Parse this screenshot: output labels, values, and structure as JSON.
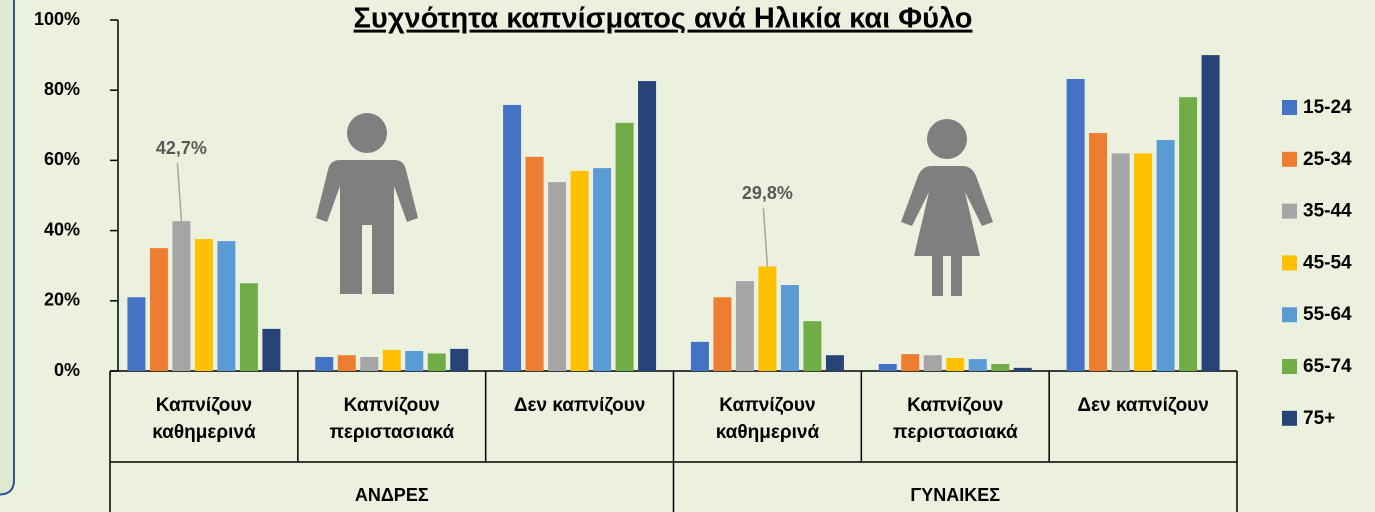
{
  "chart_data": {
    "type": "bar",
    "title": "Συχνότητα καπνίσματος ανά Ηλικία και Φύλο",
    "categories": [
      "Καπνίζουν καθημερινά",
      "Καπνίζουν περιστασιακά",
      "Δεν καπνίζουν",
      "Καπνίζουν καθημερινά",
      "Καπνίζουν περιστασιακά",
      "Δεν καπνίζουν"
    ],
    "groups": [
      "ΑΝΔΡΕΣ",
      "ΓΥΝΑΙΚΕΣ"
    ],
    "series": [
      {
        "name": "15-24",
        "color": "#4472c4",
        "values": [
          21,
          4,
          75.8,
          8.3,
          2,
          83.2
        ]
      },
      {
        "name": "25-34",
        "color": "#ed7d31",
        "values": [
          35,
          4.5,
          61,
          21,
          4.8,
          67.8
        ]
      },
      {
        "name": "35-44",
        "color": "#a5a5a5",
        "values": [
          42.7,
          4,
          53.8,
          25.6,
          4.5,
          62
        ],
        "value_labels": [
          "42,7%",
          null,
          null,
          null,
          null,
          null
        ]
      },
      {
        "name": "45-54",
        "color": "#ffc000",
        "values": [
          37.6,
          6,
          57,
          29.8,
          3.7,
          62
        ],
        "value_labels": [
          null,
          null,
          null,
          "29,8%",
          null,
          null
        ]
      },
      {
        "name": "55-64",
        "color": "#5b9bd5",
        "values": [
          37,
          5.7,
          57.8,
          24.5,
          3.4,
          65.8
        ]
      },
      {
        "name": "65-74",
        "color": "#70ad47",
        "values": [
          25,
          5,
          70.7,
          14.2,
          2,
          78
        ]
      },
      {
        "name": "75+",
        "color": "#264478",
        "values": [
          12,
          6.3,
          82.6,
          4.5,
          0.9,
          90
        ]
      }
    ],
    "ylim": [
      0,
      100
    ],
    "yticks": [
      {
        "value": 0,
        "label": "0%"
      },
      {
        "value": 20,
        "label": "20%"
      },
      {
        "value": 40,
        "label": "40%"
      },
      {
        "value": 60,
        "label": "60%"
      },
      {
        "value": 80,
        "label": "80%"
      },
      {
        "value": 100,
        "label": "100%"
      }
    ],
    "legend": "right"
  }
}
